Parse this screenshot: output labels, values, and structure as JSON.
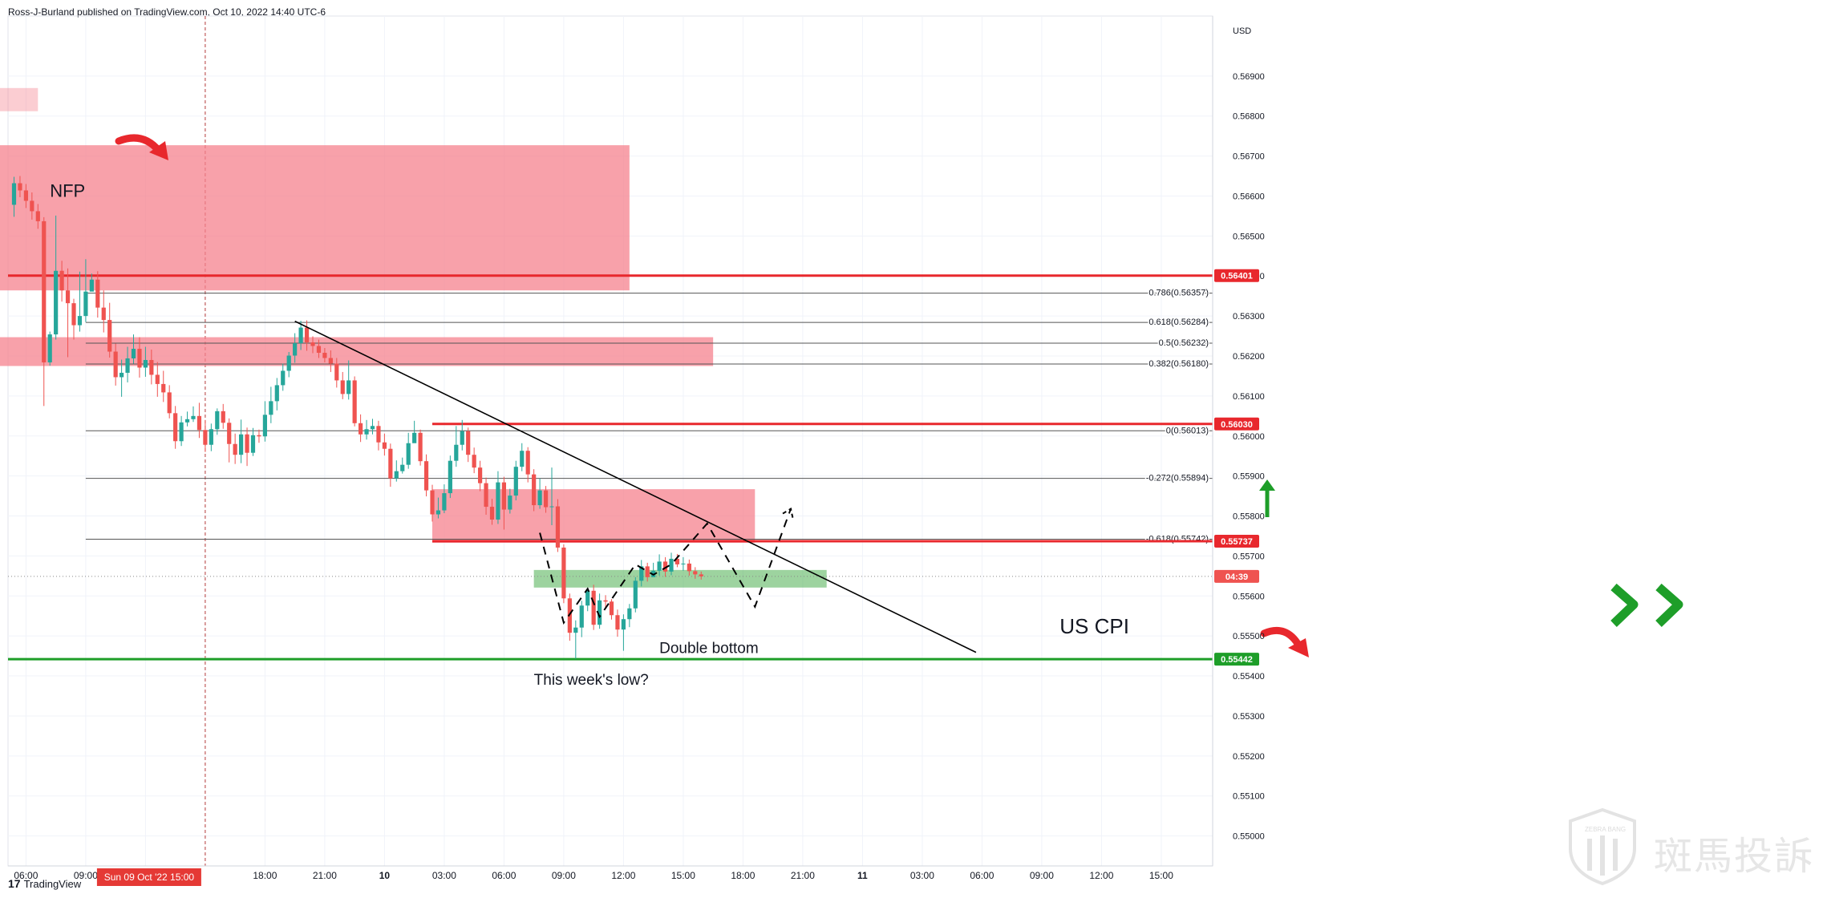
{
  "header": {
    "author": "Ross-J-Burland",
    "published_text": "published on TradingView.com, Oct 10, 2022 14:40 UTC-6"
  },
  "footer": {
    "brand": "TradingView",
    "logo": "17"
  },
  "watermark": {
    "text_cn": "斑馬投訴",
    "text_en": "ZEBRA BANG"
  },
  "colors": {
    "bull": "#26a69a",
    "bear": "#ef5350",
    "resistance_zone": "#f6828e",
    "resistance_line": "#e8282d",
    "support_zone": "#4caf50",
    "support_line": "#1e9e29",
    "trendline": "#000000"
  },
  "chart_data": {
    "type": "candlestick",
    "currency": "USD",
    "y_ticks": [
      "0.56900",
      "0.56800",
      "0.56700",
      "0.56600",
      "0.56500",
      "0.56400",
      "0.56300",
      "0.56200",
      "0.56100",
      "0.56000",
      "0.55900",
      "0.55800",
      "0.55700",
      "0.55600",
      "0.55500",
      "0.55400",
      "0.55300",
      "0.55200",
      "0.55100",
      "0.55000"
    ],
    "y_tick_values": [
      0.569,
      0.568,
      0.567,
      0.566,
      0.565,
      0.564,
      0.563,
      0.562,
      0.561,
      0.56,
      0.559,
      0.558,
      0.557,
      0.556,
      0.555,
      0.554,
      0.553,
      0.552,
      0.551,
      0.55
    ],
    "ylim": [
      0.54925,
      0.5705
    ],
    "x_ticks": [
      {
        "label": "06:00",
        "slot": 2
      },
      {
        "label": "09:00",
        "slot": 12
      },
      {
        "label": "12:00",
        "slot": 22
      },
      {
        "label": "18:00",
        "slot": 42
      },
      {
        "label": "21:00",
        "slot": 52
      },
      {
        "label": "10",
        "slot": 62
      },
      {
        "label": "03:00",
        "slot": 72
      },
      {
        "label": "06:00",
        "slot": 82
      },
      {
        "label": "09:00",
        "slot": 92
      },
      {
        "label": "12:00",
        "slot": 102
      },
      {
        "label": "15:00",
        "slot": 112
      },
      {
        "label": "18:00",
        "slot": 122
      },
      {
        "label": "21:00",
        "slot": 132
      },
      {
        "label": "11",
        "slot": 142
      },
      {
        "label": "03:00",
        "slot": 152
      },
      {
        "label": "06:00",
        "slot": 162
      },
      {
        "label": "09:00",
        "slot": 172
      },
      {
        "label": "12:00",
        "slot": 182
      },
      {
        "label": "15:00",
        "slot": 192
      }
    ],
    "cursor": {
      "label": "Sun 09 Oct '22   15:00",
      "slot": 32
    },
    "price_labels": [
      {
        "label": "0.56401",
        "value": 0.56401,
        "kind": "resistance"
      },
      {
        "label": "0.56030",
        "value": 0.5603,
        "kind": "resistance"
      },
      {
        "label": "0.55737",
        "value": 0.55737,
        "kind": "resistance"
      },
      {
        "label": "04:39",
        "value": 0.55649,
        "kind": "countdown"
      },
      {
        "label": "0.55442",
        "value": 0.55442,
        "kind": "support"
      }
    ],
    "fib_levels": [
      {
        "label": "0.786(0.56357)",
        "value": 0.56357
      },
      {
        "label": "0.618(0.56284)",
        "value": 0.56284
      },
      {
        "label": "0.5(0.56232)",
        "value": 0.56232
      },
      {
        "label": "0.382(0.56180)",
        "value": 0.5618
      },
      {
        "label": "0(0.56013)",
        "value": 0.56013
      },
      {
        "label": "-0.272(0.55894)",
        "value": 0.55894
      },
      {
        "label": "-0.618(0.55742)",
        "value": 0.55742
      }
    ],
    "fib_start_slot": 12,
    "horizontal_lines": [
      {
        "value": 0.56401,
        "start_slot": -4,
        "kind": "resistance"
      },
      {
        "value": 0.5603,
        "start_slot": 70,
        "kind": "resistance"
      },
      {
        "value": 0.55737,
        "start_slot": 70,
        "kind": "resistance"
      },
      {
        "value": 0.55442,
        "start_slot": -4,
        "kind": "support"
      }
    ],
    "zones": [
      {
        "x_from": -4,
        "x_to": 4,
        "y_from": 0.5687,
        "y_to": 0.56812,
        "kind": "resistance_light"
      },
      {
        "x_from": -4,
        "x_to": 103,
        "y_from": 0.56727,
        "y_to": 0.56364,
        "kind": "resistance"
      },
      {
        "x_from": -4,
        "x_to": 117,
        "y_from": 0.56247,
        "y_to": 0.56175,
        "kind": "resistance"
      },
      {
        "x_from": 70,
        "x_to": 124,
        "y_from": 0.55867,
        "y_to": 0.55733,
        "kind": "resistance"
      },
      {
        "x_from": 87,
        "x_to": 136,
        "y_from": 0.55665,
        "y_to": 0.55621,
        "kind": "support"
      }
    ],
    "trendline": {
      "from": {
        "slot": 47,
        "value": 0.56287
      },
      "to": {
        "slot": 161,
        "value": 0.55459
      }
    },
    "projection_path": [
      {
        "slot": 88,
        "value": 0.55758
      },
      {
        "slot": 92,
        "value": 0.55533
      },
      {
        "slot": 96,
        "value": 0.55618
      },
      {
        "slot": 98,
        "value": 0.55548
      },
      {
        "slot": 104,
        "value": 0.55679
      },
      {
        "slot": 107,
        "value": 0.55653
      },
      {
        "slot": 110,
        "value": 0.55679
      },
      {
        "slot": 116,
        "value": 0.55781
      },
      {
        "slot": 124,
        "value": 0.55573
      },
      {
        "slot": 130,
        "value": 0.55818
      }
    ],
    "annotations": [
      {
        "text": "NFP",
        "slot": 6,
        "value": 0.56598,
        "size": 22
      },
      {
        "text": "Double bottom",
        "slot": 108,
        "value": 0.55457,
        "size": 19
      },
      {
        "text": "This week's low?",
        "slot": 87,
        "value": 0.55378,
        "size": 19
      },
      {
        "text": "US CPI",
        "slot": 175,
        "value": 0.55506,
        "size": 26
      }
    ],
    "candles": [
      [
        0.56578,
        0.56632,
        0.56648,
        0.56548
      ],
      [
        0.56632,
        0.56614,
        0.5665,
        0.56597
      ],
      [
        0.56614,
        0.56588,
        0.5663,
        0.5657
      ],
      [
        0.56588,
        0.56562,
        0.56609,
        0.56541
      ],
      [
        0.56562,
        0.56537,
        0.5658,
        0.56518
      ],
      [
        0.56537,
        0.56184,
        0.56547,
        0.56075
      ],
      [
        0.56184,
        0.56254,
        0.56261,
        0.56176
      ],
      [
        0.56254,
        0.56413,
        0.56551,
        0.56241
      ],
      [
        0.56413,
        0.56364,
        0.56438,
        0.56336
      ],
      [
        0.56364,
        0.56332,
        0.56419,
        0.56197
      ],
      [
        0.56332,
        0.56277,
        0.56343,
        0.56241
      ],
      [
        0.56277,
        0.563,
        0.56411,
        0.56261
      ],
      [
        0.563,
        0.56361,
        0.56442,
        0.56285
      ],
      [
        0.56361,
        0.56391,
        0.56406,
        0.56375
      ],
      [
        0.56391,
        0.56321,
        0.56412,
        0.56296
      ],
      [
        0.56321,
        0.5629,
        0.56364,
        0.56259
      ],
      [
        0.5629,
        0.56211,
        0.56333,
        0.56196
      ],
      [
        0.56211,
        0.56147,
        0.56231,
        0.56126
      ],
      [
        0.56147,
        0.56158,
        0.56191,
        0.56098
      ],
      [
        0.56158,
        0.56194,
        0.56223,
        0.56134
      ],
      [
        0.56194,
        0.56218,
        0.56254,
        0.56181
      ],
      [
        0.56218,
        0.56171,
        0.56247,
        0.56146
      ],
      [
        0.56171,
        0.5619,
        0.56223,
        0.56148
      ],
      [
        0.5619,
        0.56153,
        0.56216,
        0.56129
      ],
      [
        0.56153,
        0.5613,
        0.56185,
        0.56098
      ],
      [
        0.5613,
        0.56109,
        0.56163,
        0.56085
      ],
      [
        0.56109,
        0.56057,
        0.56127,
        0.56044
      ],
      [
        0.56057,
        0.55987,
        0.56075,
        0.55968
      ],
      [
        0.55987,
        0.56034,
        0.5605,
        0.55975
      ],
      [
        0.56034,
        0.56042,
        0.56061,
        0.56024
      ],
      [
        0.56042,
        0.5605,
        0.56074,
        0.56035
      ],
      [
        0.5605,
        0.56015,
        0.56083,
        0.55995
      ],
      [
        0.56015,
        0.55978,
        0.5604,
        0.5596
      ],
      [
        0.55978,
        0.56017,
        0.56031,
        0.55962
      ],
      [
        0.56017,
        0.56062,
        0.56069,
        0.56003
      ],
      [
        0.56062,
        0.56033,
        0.5608,
        0.56018
      ],
      [
        0.56033,
        0.5598,
        0.56044,
        0.55934
      ],
      [
        0.5598,
        0.55953,
        0.56006,
        0.5593
      ],
      [
        0.55953,
        0.56004,
        0.56041,
        0.55932
      ],
      [
        0.56004,
        0.55958,
        0.56021,
        0.55925
      ],
      [
        0.55958,
        0.56002,
        0.5602,
        0.5595
      ],
      [
        0.56002,
        0.55999,
        0.56016,
        0.55983
      ],
      [
        0.55999,
        0.56053,
        0.56087,
        0.55986
      ],
      [
        0.56053,
        0.56087,
        0.56123,
        0.56032
      ],
      [
        0.56087,
        0.56127,
        0.56145,
        0.56064
      ],
      [
        0.56127,
        0.56163,
        0.56181,
        0.56113
      ],
      [
        0.56163,
        0.56201,
        0.5621,
        0.56147
      ],
      [
        0.56201,
        0.56232,
        0.56257,
        0.56183
      ],
      [
        0.56232,
        0.56271,
        0.56288,
        0.56215
      ],
      [
        0.56271,
        0.56234,
        0.56289,
        0.56213
      ],
      [
        0.56234,
        0.56225,
        0.56249,
        0.56207
      ],
      [
        0.56225,
        0.56208,
        0.56241,
        0.56195
      ],
      [
        0.56208,
        0.56195,
        0.5622,
        0.56184
      ],
      [
        0.56195,
        0.56181,
        0.56214,
        0.5616
      ],
      [
        0.56181,
        0.56139,
        0.56195,
        0.56121
      ],
      [
        0.56139,
        0.56105,
        0.5616,
        0.56092
      ],
      [
        0.56105,
        0.56139,
        0.56189,
        0.56091
      ],
      [
        0.56139,
        0.56032,
        0.56149,
        0.56024
      ],
      [
        0.56032,
        0.56004,
        0.56054,
        0.55985
      ],
      [
        0.56004,
        0.56017,
        0.5604,
        0.55991
      ],
      [
        0.56017,
        0.56025,
        0.56043,
        0.56004
      ],
      [
        0.56025,
        0.55984,
        0.56038,
        0.55964
      ],
      [
        0.55984,
        0.55968,
        0.56006,
        0.55951
      ],
      [
        0.55968,
        0.55894,
        0.55981,
        0.55873
      ],
      [
        0.55894,
        0.55912,
        0.55939,
        0.55886
      ],
      [
        0.55912,
        0.55928,
        0.55946,
        0.55906
      ],
      [
        0.55928,
        0.55982,
        0.56008,
        0.55918
      ],
      [
        0.55982,
        0.56008,
        0.56038,
        0.55994
      ],
      [
        0.56008,
        0.55937,
        0.56016,
        0.55926
      ],
      [
        0.55937,
        0.55864,
        0.55954,
        0.55849
      ],
      [
        0.55864,
        0.55804,
        0.55878,
        0.55786
      ],
      [
        0.55804,
        0.55814,
        0.55846,
        0.55794
      ],
      [
        0.55814,
        0.55857,
        0.55879,
        0.55807
      ],
      [
        0.55857,
        0.55938,
        0.55951,
        0.55845
      ],
      [
        0.55938,
        0.55978,
        0.56025,
        0.55923
      ],
      [
        0.55978,
        0.56012,
        0.5604,
        0.55964
      ],
      [
        0.56012,
        0.55953,
        0.56021,
        0.55935
      ],
      [
        0.55953,
        0.55921,
        0.55971,
        0.55907
      ],
      [
        0.55921,
        0.55882,
        0.55938,
        0.55862
      ],
      [
        0.55882,
        0.55823,
        0.55896,
        0.55803
      ],
      [
        0.55823,
        0.55791,
        0.55843,
        0.55778
      ],
      [
        0.55791,
        0.55884,
        0.55912,
        0.5578
      ],
      [
        0.55884,
        0.55816,
        0.55898,
        0.55766
      ],
      [
        0.55816,
        0.55851,
        0.55868,
        0.55806
      ],
      [
        0.55851,
        0.55923,
        0.55938,
        0.55839
      ],
      [
        0.55923,
        0.55963,
        0.55982,
        0.55912
      ],
      [
        0.55963,
        0.55904,
        0.55972,
        0.55884
      ],
      [
        0.55904,
        0.55827,
        0.55917,
        0.55812
      ],
      [
        0.55827,
        0.55864,
        0.55894,
        0.55818
      ],
      [
        0.55864,
        0.55822,
        0.55875,
        0.55808
      ],
      [
        0.55822,
        0.55824,
        0.55921,
        0.55777
      ],
      [
        0.55824,
        0.55721,
        0.55842,
        0.5571
      ],
      [
        0.55721,
        0.55594,
        0.55729,
        0.55582
      ],
      [
        0.55594,
        0.55508,
        0.55606,
        0.55488
      ],
      [
        0.55508,
        0.55521,
        0.55539,
        0.55443
      ],
      [
        0.55521,
        0.55576,
        0.55588,
        0.55497
      ],
      [
        0.55576,
        0.55613,
        0.5562,
        0.55562
      ],
      [
        0.55613,
        0.55528,
        0.55628,
        0.55515
      ],
      [
        0.55528,
        0.55589,
        0.55606,
        0.55518
      ],
      [
        0.55589,
        0.55586,
        0.55602,
        0.55569
      ],
      [
        0.55586,
        0.55552,
        0.55592,
        0.55541
      ],
      [
        0.55552,
        0.55516,
        0.55566,
        0.55498
      ],
      [
        0.55516,
        0.55542,
        0.55554,
        0.55463
      ],
      [
        0.55542,
        0.55569,
        0.5558,
        0.55522
      ],
      [
        0.55569,
        0.55638,
        0.55647,
        0.55559
      ],
      [
        0.55638,
        0.55674,
        0.5569,
        0.55624
      ],
      [
        0.55674,
        0.55647,
        0.55683,
        0.55636
      ],
      [
        0.55647,
        0.55663,
        0.55683,
        0.55651
      ],
      [
        0.55663,
        0.55686,
        0.55704,
        0.55651
      ],
      [
        0.55686,
        0.55661,
        0.55697,
        0.55648
      ],
      [
        0.55661,
        0.55693,
        0.55708,
        0.55652
      ],
      [
        0.55693,
        0.55679,
        0.55705,
        0.55672
      ],
      [
        0.55679,
        0.55681,
        0.55697,
        0.55663
      ],
      [
        0.55681,
        0.55662,
        0.55691,
        0.55651
      ],
      [
        0.55662,
        0.55654,
        0.55672,
        0.55643
      ],
      [
        0.55654,
        0.55649,
        0.55661,
        0.55641
      ]
    ]
  }
}
